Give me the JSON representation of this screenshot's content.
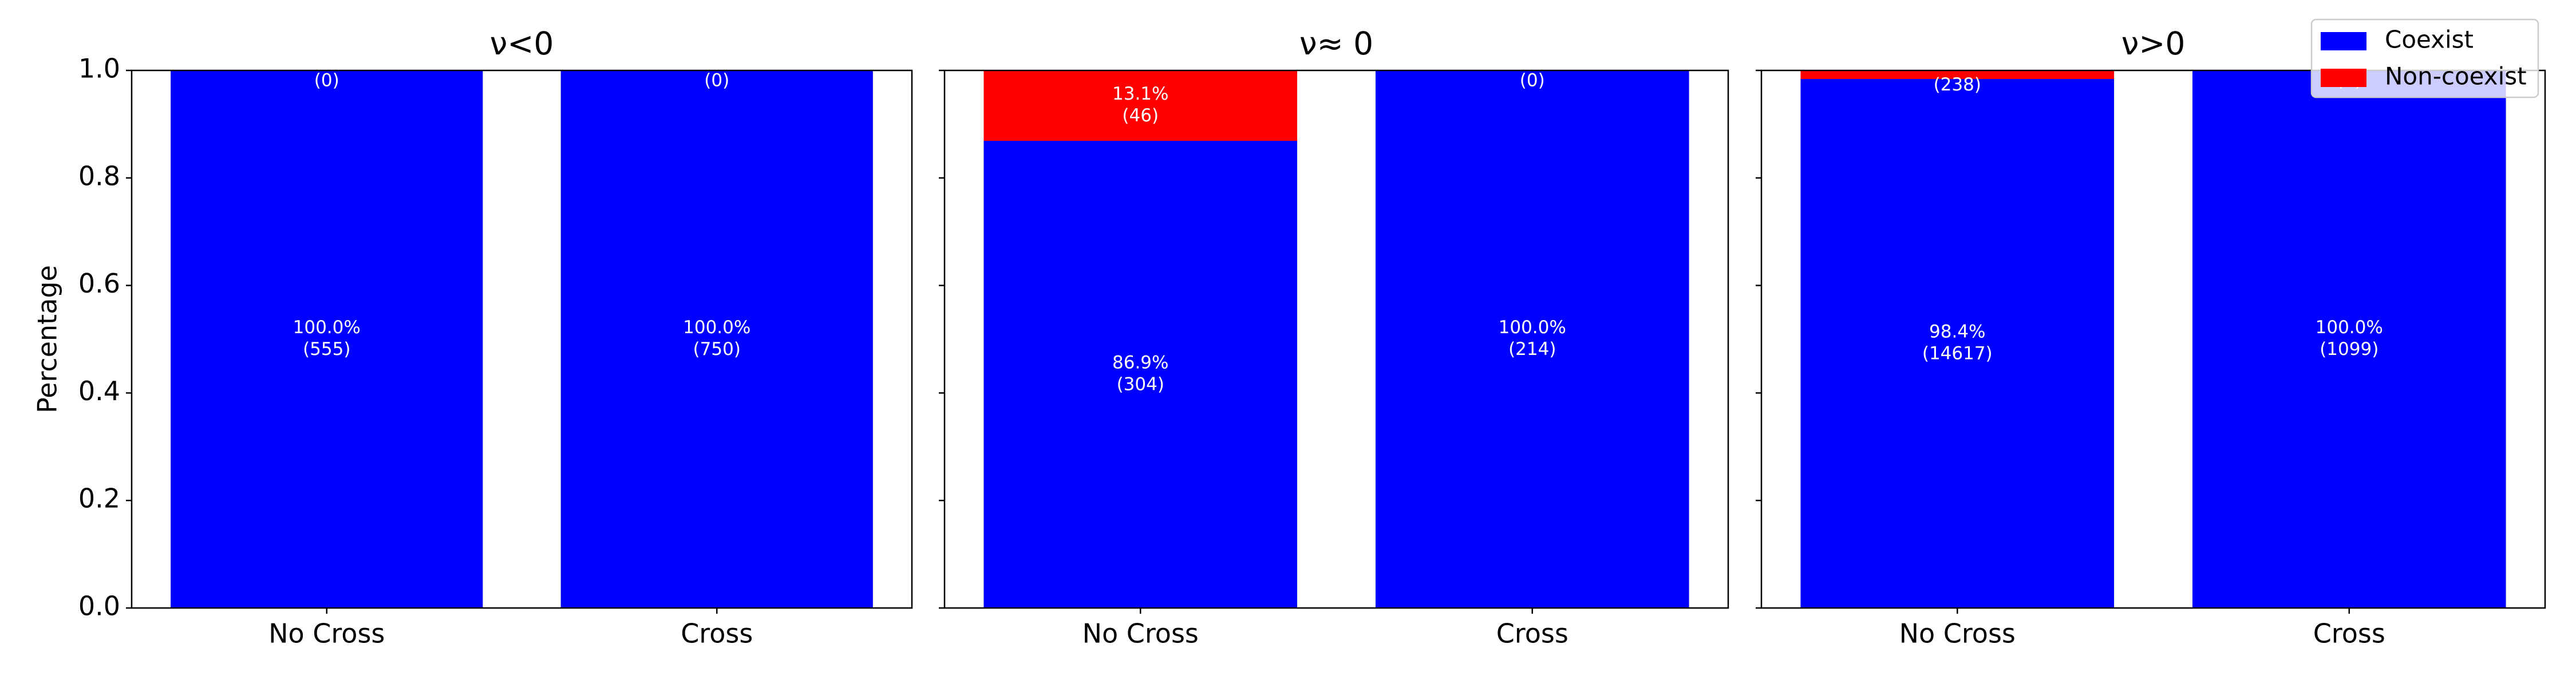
{
  "chart_data": [
    {
      "type": "bar",
      "stacked": true,
      "title": "ν<0",
      "ylabel": "Percentage",
      "categories": [
        "No Cross",
        "Cross"
      ],
      "xlim": [
        -0.5,
        1.5
      ],
      "ylim": [
        0,
        1
      ],
      "yticks": [
        {
          "value": 0,
          "label": "0.0"
        },
        {
          "value": 0.2,
          "label": "0.2"
        },
        {
          "value": 0.4,
          "label": "0.4"
        },
        {
          "value": 0.6,
          "label": "0.6"
        },
        {
          "value": 0.8,
          "label": "0.8"
        },
        {
          "value": 1,
          "label": "1.0"
        }
      ],
      "ytick_labels": true,
      "series": [
        {
          "color": "#0000ff",
          "values": [
            1.0,
            1.0
          ],
          "value_labels": [
            "100.0%",
            "100.0%"
          ],
          "count_labels": [
            "(555)",
            "(750)"
          ]
        },
        {
          "color": "#ff0000",
          "values": [
            0,
            0
          ],
          "value_labels": [
            null,
            null
          ],
          "count_labels": [
            "(0)",
            "(0)"
          ]
        }
      ]
    },
    {
      "type": "bar",
      "stacked": true,
      "title": "ν≈ 0",
      "categories": [
        "No Cross",
        "Cross"
      ],
      "xlim": [
        -0.5,
        1.5
      ],
      "ylim": [
        0,
        1
      ],
      "yticks": [
        0,
        0.2,
        0.4,
        0.6,
        0.8,
        1
      ],
      "ytick_labels": false,
      "series": [
        {
          "color": "#0000ff",
          "values": [
            0.869,
            1.0
          ],
          "value_labels": [
            "86.9%",
            "100.0%"
          ],
          "count_labels": [
            "(304)",
            "(214)"
          ]
        },
        {
          "color": "#ff0000",
          "values": [
            0.131,
            0
          ],
          "value_labels": [
            "13.1%",
            null
          ],
          "count_labels": [
            "(46)",
            "(0)"
          ]
        }
      ]
    },
    {
      "type": "bar",
      "stacked": true,
      "title": "ν>0",
      "categories": [
        "No Cross",
        "Cross"
      ],
      "xlim": [
        -0.5,
        1.5
      ],
      "ylim": [
        0,
        1
      ],
      "yticks": [
        0,
        0.2,
        0.4,
        0.6,
        0.8,
        1
      ],
      "ytick_labels": false,
      "legend": "upper right",
      "series": [
        {
          "name": "Coexist",
          "color": "#0000ff",
          "values": [
            0.984,
            1.0
          ],
          "value_labels": [
            "98.4%",
            "100.0%"
          ],
          "count_labels": [
            "(14617)",
            "(1099)"
          ]
        },
        {
          "name": "Non-coexist",
          "color": "#ff0000",
          "values": [
            0.016,
            0
          ],
          "value_labels": [
            null,
            null
          ],
          "count_labels": [
            "(238)",
            "(0)"
          ]
        }
      ]
    }
  ]
}
